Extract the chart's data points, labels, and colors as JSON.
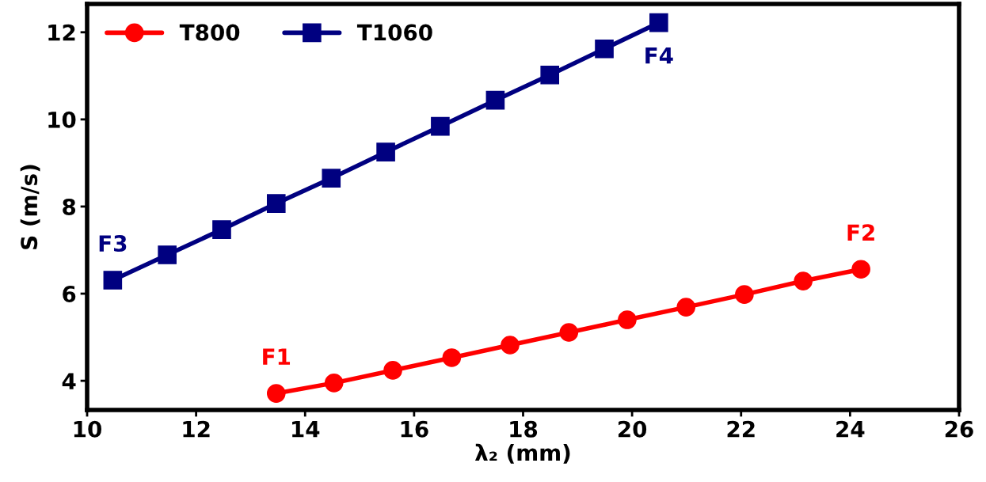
{
  "chart_data": {
    "type": "line",
    "xlabel": "λ₂ (mm)",
    "ylabel": "S (m/s)",
    "xlim": [
      10,
      26
    ],
    "xticks": [
      10,
      12,
      14,
      16,
      18,
      20,
      22,
      24,
      26
    ],
    "ylim": [
      3.33,
      12.65
    ],
    "yticks": [
      4,
      6,
      8,
      10,
      12
    ],
    "line_style": "solid",
    "grid": false,
    "legend": "top left",
    "series": [
      {
        "name": "T800",
        "color": "#ff0000",
        "marker": "circle",
        "x": [
          13.47,
          14.53,
          15.61,
          16.69,
          17.76,
          18.84,
          19.91,
          20.99,
          22.06,
          23.14,
          24.2
        ],
        "values": [
          3.71,
          3.95,
          4.24,
          4.53,
          4.82,
          5.11,
          5.4,
          5.69,
          5.98,
          6.29,
          6.56
        ]
      },
      {
        "name": "T1060",
        "color": "#000080",
        "marker": "square",
        "x": [
          10.47,
          11.47,
          12.47,
          13.47,
          14.48,
          15.48,
          16.48,
          17.49,
          18.49,
          19.49,
          20.49
        ],
        "values": [
          6.31,
          6.89,
          7.47,
          8.07,
          8.65,
          9.25,
          9.84,
          10.44,
          11.02,
          11.62,
          12.22
        ]
      }
    ],
    "annotations": [
      {
        "text": "F1",
        "x": 13.47,
        "y": 3.71
      },
      {
        "text": "F2",
        "x": 24.2,
        "y": 6.56
      },
      {
        "text": "F3",
        "x": 10.47,
        "y": 6.31
      },
      {
        "text": "F4",
        "x": 20.49,
        "y": 12.22
      }
    ]
  }
}
